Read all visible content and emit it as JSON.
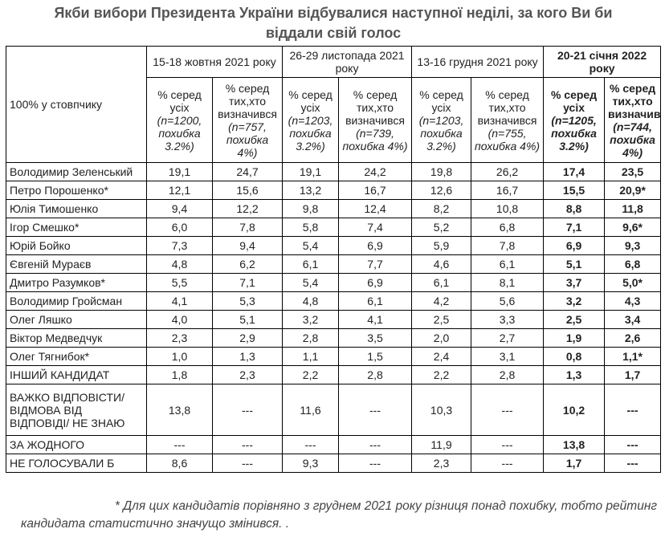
{
  "title": "Якби вибори Президента України відбувалися наступної неділі, за кого Ви би віддали свій голос",
  "row_header_label": "100% у стовпчику",
  "periods": [
    {
      "label": "15-18 жовтня 2021 року",
      "sub": [
        {
          "pct": "% серед усіх",
          "n": "(n=1200, похибка 3.2%)"
        },
        {
          "pct": "% серед тих,хто визначився",
          "n": "(n=757, похибка 4%)"
        }
      ]
    },
    {
      "label": "26-29 листопада 2021 року",
      "sub": [
        {
          "pct": "% серед усіх",
          "n": "(n=1203, похибка 3.2%)"
        },
        {
          "pct": "% серед тих,хто визначився",
          "n": "(n=739, похибка 4%)"
        }
      ]
    },
    {
      "label": "13-16 грудня 2021 року",
      "sub": [
        {
          "pct": "% серед усіх",
          "n": "(n=1203, похибка 3.2%)"
        },
        {
          "pct": "% серед тих,хто визначився",
          "n": "(n=755, похибка 4%)"
        }
      ]
    },
    {
      "label": "20-21 січня 2022 року",
      "sub": [
        {
          "pct": "% серед усіх",
          "n": "(n=1205, похибка 3.2%)"
        },
        {
          "pct": "% серед тих,хто визначився",
          "n": "(n=744, похибка 4%)"
        }
      ]
    }
  ],
  "rows": [
    {
      "name": "Володимир Зеленський",
      "values": [
        "19,1",
        "24,7",
        "19,1",
        "24,2",
        "19,8",
        "26,2",
        "17,4",
        "23,5"
      ]
    },
    {
      "name": "Петро Порошенко*",
      "values": [
        "12,1",
        "15,6",
        "13,2",
        "16,7",
        "12,6",
        "16,7",
        "15,5",
        "20,9*"
      ]
    },
    {
      "name": "Юлія Тимошенко",
      "values": [
        "9,4",
        "12,2",
        "9,8",
        "12,4",
        "8,2",
        "10,8",
        "8,8",
        "11,8"
      ]
    },
    {
      "name": "Ігор Смешко*",
      "values": [
        "6,0",
        "7,8",
        "5,8",
        "7,4",
        "5,2",
        "6,8",
        "7,1",
        "9,6*"
      ]
    },
    {
      "name": "Юрій Бойко",
      "values": [
        "7,3",
        "9,4",
        "5,4",
        "6,9",
        "5,9",
        "7,8",
        "6,9",
        "9,3"
      ]
    },
    {
      "name": "Євгеній Мураєв",
      "values": [
        "4,8",
        "6,2",
        "6,1",
        "7,7",
        "4,6",
        "6,1",
        "5,1",
        "6,8"
      ]
    },
    {
      "name": "Дмитро Разумков*",
      "values": [
        "5,5",
        "7,1",
        "5,4",
        "6,9",
        "6,1",
        "8,1",
        "3,7",
        "5,0*"
      ]
    },
    {
      "name": "Володимир Гройсман",
      "values": [
        "4,1",
        "5,3",
        "4,8",
        "6,1",
        "4,2",
        "5,6",
        "3,2",
        "4,3"
      ]
    },
    {
      "name": "Олег Ляшко",
      "values": [
        "4,0",
        "5,1",
        "3,2",
        "4,1",
        "2,5",
        "3,3",
        "2,5",
        "3,4"
      ]
    },
    {
      "name": "Віктор Медведчук",
      "values": [
        "2,3",
        "2,9",
        "2,8",
        "3,5",
        "2,0",
        "2,7",
        "1,9",
        "2,6"
      ]
    },
    {
      "name": "Олег Тягнибок*",
      "values": [
        "1,0",
        "1,3",
        "1,1",
        "1,5",
        "2,4",
        "3,1",
        "0,8",
        "1,1*"
      ]
    },
    {
      "name": "ІНШИЙ КАНДИДАТ",
      "values": [
        "1,8",
        "2,3",
        "2,2",
        "2,8",
        "2,2",
        "2,8",
        "1,3",
        "1,7"
      ]
    },
    {
      "name": "ВАЖКО ВІДПОВІСТИ/ ВІДМОВА ВІД ВІДПОВІДІ/ НЕ ЗНАЮ",
      "values": [
        "13,8",
        "---",
        "11,6",
        "---",
        "10,3",
        "---",
        "10,2",
        "---"
      ]
    },
    {
      "name": "ЗА ЖОДНОГО",
      "values": [
        "---",
        "---",
        "---",
        "---",
        "11,9",
        "---",
        "13,8",
        "---"
      ]
    },
    {
      "name": "НЕ ГОЛОСУВАЛИ Б",
      "values": [
        "8,6",
        "---",
        "9,3",
        "---",
        "2,3",
        "---",
        "1,7",
        "---"
      ]
    }
  ],
  "footnote": {
    "line1": "* Для цих кандидатів порівняно з груднем 2021 року різниця понад похибку, тобто рейтинг",
    "line2": "кандидата статистично значущо змінився. ."
  }
}
